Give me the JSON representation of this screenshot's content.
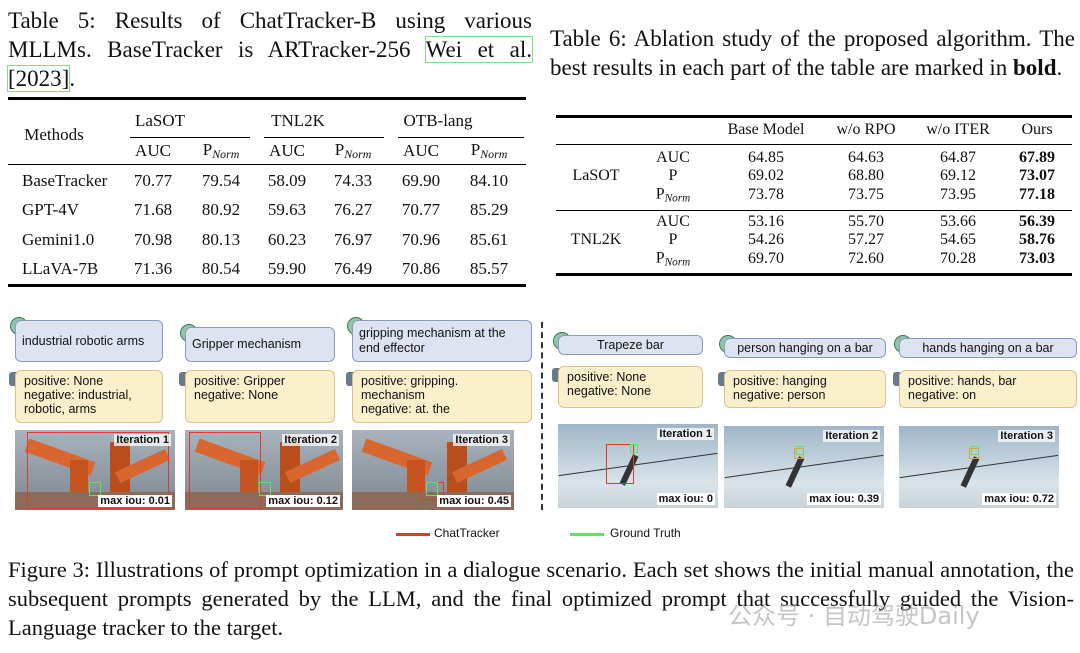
{
  "table5": {
    "caption": {
      "text": "Table 5: Results of ChatTracker-B using various MLLMs. BaseTracker is ARTracker-256",
      "cite_author": "Wei et al.",
      "cite_year": "[2023]",
      "end": "."
    },
    "methods_header": "Methods",
    "groups": [
      "LaSOT",
      "TNL2K",
      "OTB-lang"
    ],
    "metrics": [
      {
        "main": "AUC"
      },
      {
        "main": "P",
        "sub": "Norm"
      },
      {
        "main": "AUC"
      },
      {
        "main": "P",
        "sub": "Norm"
      },
      {
        "main": "AUC"
      },
      {
        "main": "P",
        "sub": "Norm"
      }
    ],
    "rows": [
      {
        "method": "BaseTracker",
        "values": [
          "70.77",
          "79.54",
          "58.09",
          "74.33",
          "69.90",
          "84.10"
        ]
      },
      {
        "method": "GPT-4V",
        "values": [
          "71.68",
          "80.92",
          "59.63",
          "76.27",
          "70.77",
          "85.29"
        ]
      },
      {
        "method": "Gemini1.0",
        "values": [
          "70.98",
          "80.13",
          "60.23",
          "76.97",
          "70.96",
          "85.61"
        ]
      },
      {
        "method": "LLaVA-7B",
        "values": [
          "71.36",
          "80.54",
          "59.90",
          "76.49",
          "70.86",
          "85.57"
        ]
      }
    ]
  },
  "table6": {
    "caption": {
      "text": "Table 6: Ablation study of the proposed algorithm. The best results in each part of the table are marked in",
      "bold": "bold",
      "end": "."
    },
    "columns": [
      "Base Model",
      "w/o RPO",
      "w/o ITER",
      "Ours"
    ],
    "groups": [
      {
        "name": "LaSOT",
        "rows": [
          {
            "metric": {
              "main": "AUC"
            },
            "values": [
              "64.85",
              "64.63",
              "64.87",
              "67.89"
            ]
          },
          {
            "metric": {
              "main": "P"
            },
            "values": [
              "69.02",
              "68.80",
              "69.12",
              "73.07"
            ]
          },
          {
            "metric": {
              "main": "P",
              "sub": "Norm"
            },
            "values": [
              "73.78",
              "73.75",
              "73.95",
              "77.18"
            ]
          }
        ]
      },
      {
        "name": "TNL2K",
        "rows": [
          {
            "metric": {
              "main": "AUC"
            },
            "values": [
              "53.16",
              "55.70",
              "53.66",
              "56.39"
            ]
          },
          {
            "metric": {
              "main": "P"
            },
            "values": [
              "54.26",
              "57.27",
              "54.65",
              "58.76"
            ]
          },
          {
            "metric": {
              "main": "P",
              "sub": "Norm"
            },
            "values": [
              "69.70",
              "72.60",
              "70.28",
              "73.03"
            ]
          }
        ]
      }
    ]
  },
  "figure": {
    "panels": [
      {
        "prompt": "industrial robotic arms",
        "positive": "positive: None",
        "negative": "negative: industrial, robotic, arms",
        "iteration": "Iteration 1",
        "iou": "max iou: 0.01"
      },
      {
        "prompt": "Gripper mechanism",
        "positive": "positive: Gripper",
        "negative": "negative: None",
        "iteration": "Iteration 2",
        "iou": "max iou: 0.12"
      },
      {
        "prompt": "gripping mechanism at the end effector",
        "positive": "positive: gripping. mechanism",
        "negative": "negative: at. the",
        "iteration": "Iteration 3",
        "iou": "max iou: 0.45"
      },
      {
        "prompt": "Trapeze bar",
        "positive": "positive: None",
        "negative": "negative: None",
        "iteration": "Iteration 1",
        "iou": "max iou: 0"
      },
      {
        "prompt": "person hanging on a bar",
        "positive": "positive: hanging",
        "negative": "negative: person",
        "iteration": "Iteration 2",
        "iou": "max iou: 0.39"
      },
      {
        "prompt": "hands hanging on a bar",
        "positive": "positive: hands, bar",
        "negative": "negative: on",
        "iteration": "Iteration 3",
        "iou": "max iou: 0.72"
      }
    ],
    "legend": [
      "ChatTracker",
      "Ground Truth"
    ],
    "caption": "Figure 3: Illustrations of prompt optimization in a dialogue scenario. Each set shows the initial manual annotation, the subsequent prompts generated by the LLM, and the final optimized prompt that successfully guided the Vision-Language tracker to the target."
  },
  "watermark": "公众号 · 自动驾驶Daily"
}
